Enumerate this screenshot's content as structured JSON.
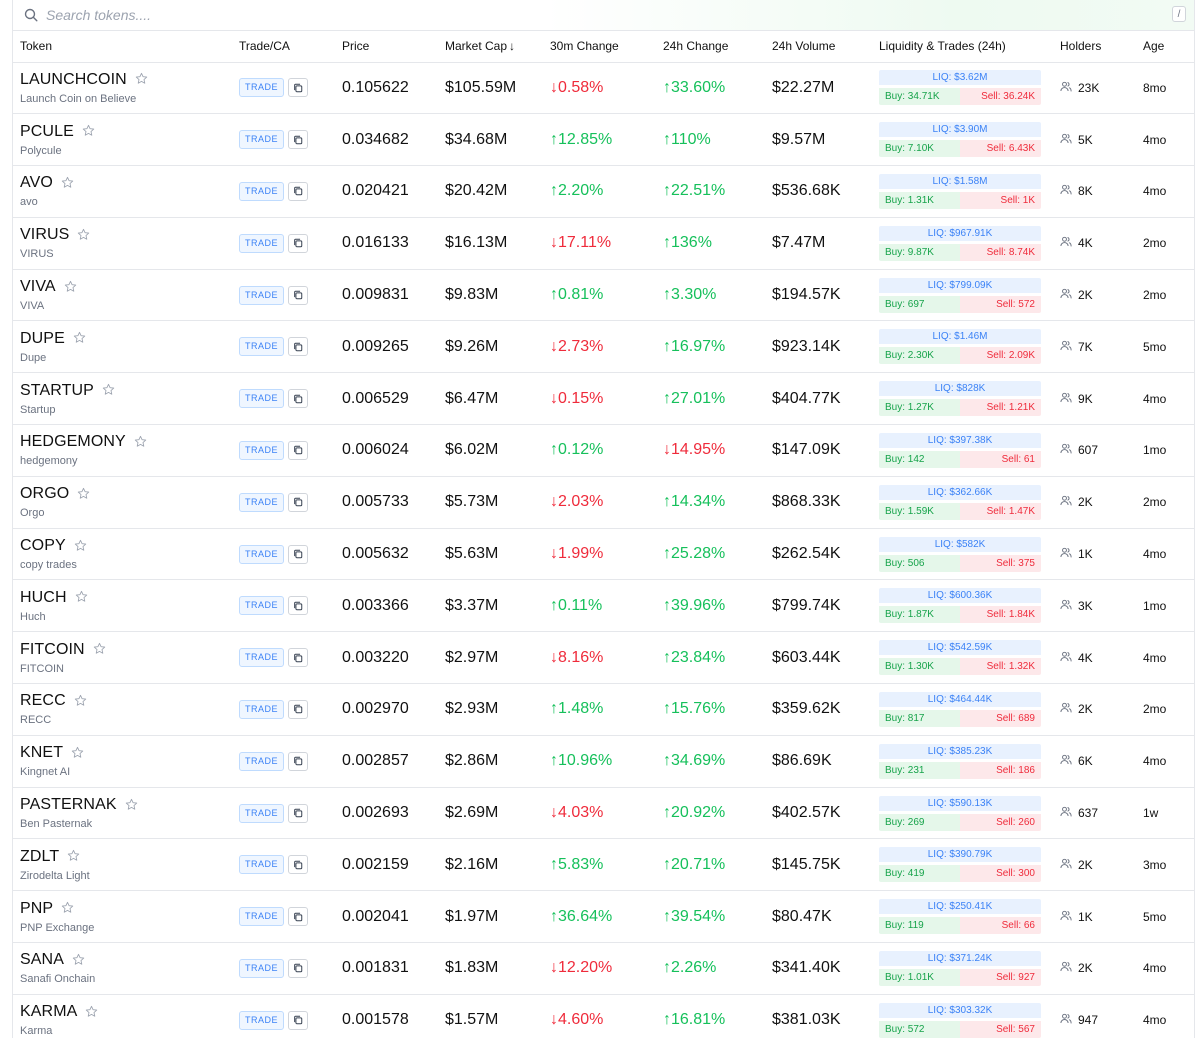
{
  "search": {
    "placeholder": "Search tokens....",
    "shortcut": "/"
  },
  "columns": {
    "token": "Token",
    "trade_ca": "Trade/CA",
    "price": "Price",
    "market_cap": "Market Cap",
    "change_30m": "30m Change",
    "change_24h": "24h Change",
    "volume_24h": "24h Volume",
    "liquidity_trades": "Liquidity & Trades (24h)",
    "holders": "Holders",
    "age": "Age"
  },
  "sort": {
    "column": "market_cap",
    "direction": "desc",
    "arrow": "↓"
  },
  "trade_label": "TRADE",
  "colors": {
    "up": "#16c05b",
    "down": "#ef2b3b",
    "accent": "#3b82f6"
  },
  "icons": {
    "search": "search-icon",
    "star": "star-icon",
    "copy": "copy-icon",
    "holders": "users-icon"
  },
  "rows": [
    {
      "symbol": "LAUNCHCOIN",
      "name": "Launch Coin on Believe",
      "price": "0.105622",
      "mcap": "$105.59M",
      "c30": "↓0.58%",
      "c30_dir": "down",
      "c24": "↑33.60%",
      "c24_dir": "up",
      "vol": "$22.27M",
      "liq": "LIQ: $3.62M",
      "buy": "Buy: 34.71K",
      "sell": "Sell: 36.24K",
      "holders": "23K",
      "age": "8mo"
    },
    {
      "symbol": "PCULE",
      "name": "Polycule",
      "price": "0.034682",
      "mcap": "$34.68M",
      "c30": "↑12.85%",
      "c30_dir": "up",
      "c24": "↑110%",
      "c24_dir": "up",
      "vol": "$9.57M",
      "liq": "LIQ: $3.90M",
      "buy": "Buy: 7.10K",
      "sell": "Sell: 6.43K",
      "holders": "5K",
      "age": "4mo"
    },
    {
      "symbol": "AVO",
      "name": "avo",
      "price": "0.020421",
      "mcap": "$20.42M",
      "c30": "↑2.20%",
      "c30_dir": "up",
      "c24": "↑22.51%",
      "c24_dir": "up",
      "vol": "$536.68K",
      "liq": "LIQ: $1.58M",
      "buy": "Buy: 1.31K",
      "sell": "Sell: 1K",
      "holders": "8K",
      "age": "4mo"
    },
    {
      "symbol": "VIRUS",
      "name": "VIRUS",
      "price": "0.016133",
      "mcap": "$16.13M",
      "c30": "↓17.11%",
      "c30_dir": "down",
      "c24": "↑136%",
      "c24_dir": "up",
      "vol": "$7.47M",
      "liq": "LIQ: $967.91K",
      "buy": "Buy: 9.87K",
      "sell": "Sell: 8.74K",
      "holders": "4K",
      "age": "2mo"
    },
    {
      "symbol": "VIVA",
      "name": "VIVA",
      "price": "0.009831",
      "mcap": "$9.83M",
      "c30": "↑0.81%",
      "c30_dir": "up",
      "c24": "↑3.30%",
      "c24_dir": "up",
      "vol": "$194.57K",
      "liq": "LIQ: $799.09K",
      "buy": "Buy: 697",
      "sell": "Sell: 572",
      "holders": "2K",
      "age": "2mo"
    },
    {
      "symbol": "DUPE",
      "name": "Dupe",
      "price": "0.009265",
      "mcap": "$9.26M",
      "c30": "↓2.73%",
      "c30_dir": "down",
      "c24": "↑16.97%",
      "c24_dir": "up",
      "vol": "$923.14K",
      "liq": "LIQ: $1.46M",
      "buy": "Buy: 2.30K",
      "sell": "Sell: 2.09K",
      "holders": "7K",
      "age": "5mo"
    },
    {
      "symbol": "STARTUP",
      "name": "Startup",
      "price": "0.006529",
      "mcap": "$6.47M",
      "c30": "↓0.15%",
      "c30_dir": "down",
      "c24": "↑27.01%",
      "c24_dir": "up",
      "vol": "$404.77K",
      "liq": "LIQ: $828K",
      "buy": "Buy: 1.27K",
      "sell": "Sell: 1.21K",
      "holders": "9K",
      "age": "4mo"
    },
    {
      "symbol": "HEDGEMONY",
      "name": "hedgemony",
      "price": "0.006024",
      "mcap": "$6.02M",
      "c30": "↑0.12%",
      "c30_dir": "up",
      "c24": "↓14.95%",
      "c24_dir": "down",
      "vol": "$147.09K",
      "liq": "LIQ: $397.38K",
      "buy": "Buy: 142",
      "sell": "Sell: 61",
      "holders": "607",
      "age": "1mo"
    },
    {
      "symbol": "ORGO",
      "name": "Orgo",
      "price": "0.005733",
      "mcap": "$5.73M",
      "c30": "↓2.03%",
      "c30_dir": "down",
      "c24": "↑14.34%",
      "c24_dir": "up",
      "vol": "$868.33K",
      "liq": "LIQ: $362.66K",
      "buy": "Buy: 1.59K",
      "sell": "Sell: 1.47K",
      "holders": "2K",
      "age": "2mo"
    },
    {
      "symbol": "COPY",
      "name": "copy trades",
      "price": "0.005632",
      "mcap": "$5.63M",
      "c30": "↓1.99%",
      "c30_dir": "down",
      "c24": "↑25.28%",
      "c24_dir": "up",
      "vol": "$262.54K",
      "liq": "LIQ: $582K",
      "buy": "Buy: 506",
      "sell": "Sell: 375",
      "holders": "1K",
      "age": "4mo"
    },
    {
      "symbol": "HUCH",
      "name": "Huch",
      "price": "0.003366",
      "mcap": "$3.37M",
      "c30": "↑0.11%",
      "c30_dir": "up",
      "c24": "↑39.96%",
      "c24_dir": "up",
      "vol": "$799.74K",
      "liq": "LIQ: $600.36K",
      "buy": "Buy: 1.87K",
      "sell": "Sell: 1.84K",
      "holders": "3K",
      "age": "1mo"
    },
    {
      "symbol": "FITCOIN",
      "name": "FITCOIN",
      "price": "0.003220",
      "mcap": "$2.97M",
      "c30": "↓8.16%",
      "c30_dir": "down",
      "c24": "↑23.84%",
      "c24_dir": "up",
      "vol": "$603.44K",
      "liq": "LIQ: $542.59K",
      "buy": "Buy: 1.30K",
      "sell": "Sell: 1.32K",
      "holders": "4K",
      "age": "4mo"
    },
    {
      "symbol": "RECC",
      "name": "RECC",
      "price": "0.002970",
      "mcap": "$2.93M",
      "c30": "↑1.48%",
      "c30_dir": "up",
      "c24": "↑15.76%",
      "c24_dir": "up",
      "vol": "$359.62K",
      "liq": "LIQ: $464.44K",
      "buy": "Buy: 817",
      "sell": "Sell: 689",
      "holders": "2K",
      "age": "2mo"
    },
    {
      "symbol": "KNET",
      "name": "Kingnet AI",
      "price": "0.002857",
      "mcap": "$2.86M",
      "c30": "↑10.96%",
      "c30_dir": "up",
      "c24": "↑34.69%",
      "c24_dir": "up",
      "vol": "$86.69K",
      "liq": "LIQ: $385.23K",
      "buy": "Buy: 231",
      "sell": "Sell: 186",
      "holders": "6K",
      "age": "4mo"
    },
    {
      "symbol": "PASTERNAK",
      "name": "Ben Pasternak",
      "price": "0.002693",
      "mcap": "$2.69M",
      "c30": "↓4.03%",
      "c30_dir": "down",
      "c24": "↑20.92%",
      "c24_dir": "up",
      "vol": "$402.57K",
      "liq": "LIQ: $590.13K",
      "buy": "Buy: 269",
      "sell": "Sell: 260",
      "holders": "637",
      "age": "1w"
    },
    {
      "symbol": "ZDLT",
      "name": "Zirodelta Light",
      "price": "0.002159",
      "mcap": "$2.16M",
      "c30": "↑5.83%",
      "c30_dir": "up",
      "c24": "↑20.71%",
      "c24_dir": "up",
      "vol": "$145.75K",
      "liq": "LIQ: $390.79K",
      "buy": "Buy: 419",
      "sell": "Sell: 300",
      "holders": "2K",
      "age": "3mo"
    },
    {
      "symbol": "PNP",
      "name": "PNP Exchange",
      "price": "0.002041",
      "mcap": "$1.97M",
      "c30": "↑36.64%",
      "c30_dir": "up",
      "c24": "↑39.54%",
      "c24_dir": "up",
      "vol": "$80.47K",
      "liq": "LIQ: $250.41K",
      "buy": "Buy: 119",
      "sell": "Sell: 66",
      "holders": "1K",
      "age": "5mo"
    },
    {
      "symbol": "SANA",
      "name": "Sanafi Onchain",
      "price": "0.001831",
      "mcap": "$1.83M",
      "c30": "↓12.20%",
      "c30_dir": "down",
      "c24": "↑2.26%",
      "c24_dir": "up",
      "vol": "$341.40K",
      "liq": "LIQ: $371.24K",
      "buy": "Buy: 1.01K",
      "sell": "Sell: 927",
      "holders": "2K",
      "age": "4mo"
    },
    {
      "symbol": "KARMA",
      "name": "Karma",
      "price": "0.001578",
      "mcap": "$1.57M",
      "c30": "↓4.60%",
      "c30_dir": "down",
      "c24": "↑16.81%",
      "c24_dir": "up",
      "vol": "$381.03K",
      "liq": "LIQ: $303.32K",
      "buy": "Buy: 572",
      "sell": "Sell: 567",
      "holders": "947",
      "age": "4mo"
    }
  ]
}
